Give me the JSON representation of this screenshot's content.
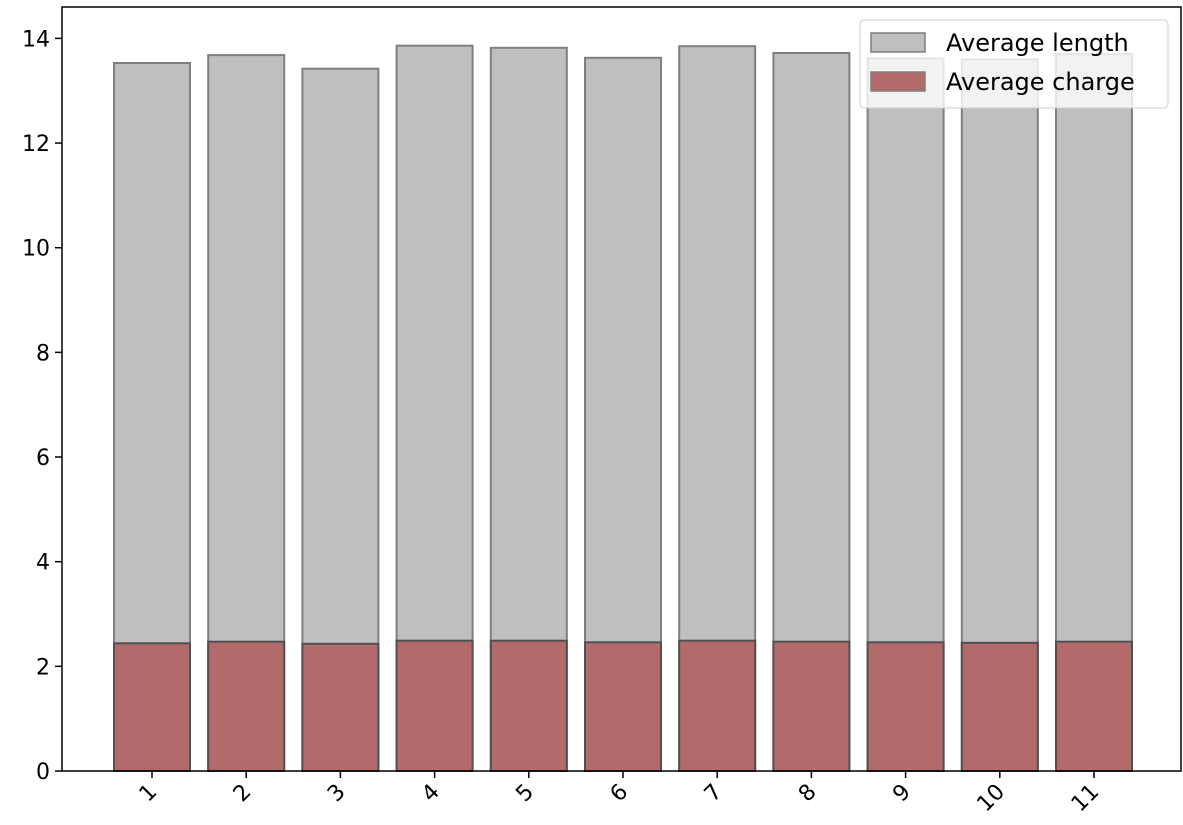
{
  "chart_data": {
    "type": "bar",
    "categories": [
      "1",
      "2",
      "3",
      "4",
      "5",
      "6",
      "7",
      "8",
      "9",
      "10",
      "11"
    ],
    "series": [
      {
        "name": "Average length",
        "values": [
          13.53,
          13.68,
          13.42,
          13.86,
          13.82,
          13.63,
          13.85,
          13.72,
          13.62,
          13.6,
          13.7
        ],
        "color": "#bfbfbf"
      },
      {
        "name": "Average charge",
        "values": [
          2.44,
          2.47,
          2.43,
          2.49,
          2.49,
          2.46,
          2.49,
          2.47,
          2.46,
          2.45,
          2.47
        ],
        "color": "#b36a6a"
      }
    ],
    "overlay": true,
    "yticks": [
      "0",
      "2",
      "4",
      "6",
      "8",
      "10",
      "12",
      "14"
    ],
    "ylim": [
      0,
      14.6
    ],
    "xlabel": "",
    "ylabel": "",
    "title": "",
    "legend_position": "top-right",
    "grid": false
  }
}
